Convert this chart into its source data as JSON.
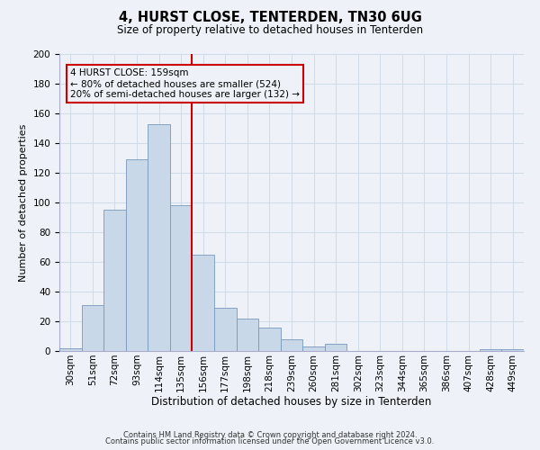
{
  "title": "4, HURST CLOSE, TENTERDEN, TN30 6UG",
  "subtitle": "Size of property relative to detached houses in Tenterden",
  "xlabel": "Distribution of detached houses by size in Tenterden",
  "ylabel": "Number of detached properties",
  "footer_line1": "Contains HM Land Registry data © Crown copyright and database right 2024.",
  "footer_line2": "Contains public sector information licensed under the Open Government Licence v3.0.",
  "bar_labels": [
    "30sqm",
    "51sqm",
    "72sqm",
    "93sqm",
    "114sqm",
    "135sqm",
    "156sqm",
    "177sqm",
    "198sqm",
    "218sqm",
    "239sqm",
    "260sqm",
    "281sqm",
    "302sqm",
    "323sqm",
    "344sqm",
    "365sqm",
    "386sqm",
    "407sqm",
    "428sqm",
    "449sqm"
  ],
  "bar_values": [
    2,
    31,
    95,
    129,
    153,
    98,
    65,
    29,
    22,
    16,
    8,
    3,
    5,
    0,
    0,
    0,
    0,
    0,
    0,
    1,
    1
  ],
  "bar_color": "#c8d8e8",
  "bar_edge_color": "#7799bb",
  "vertical_line_x": 6,
  "vertical_line_color": "#cc0000",
  "annotation_line1": "4 HURST CLOSE: 159sqm",
  "annotation_line2": "← 80% of detached houses are smaller (524)",
  "annotation_line3": "20% of semi-detached houses are larger (132) →",
  "box_edge_color": "#cc0000",
  "ylim": [
    0,
    200
  ],
  "yticks": [
    0,
    20,
    40,
    60,
    80,
    100,
    120,
    140,
    160,
    180,
    200
  ],
  "grid_color": "#d0dce8",
  "background_color": "#eef2f8",
  "title_fontsize": 10.5,
  "subtitle_fontsize": 8.5,
  "ylabel_fontsize": 8,
  "xlabel_fontsize": 8.5,
  "tick_fontsize": 7.5,
  "annotation_fontsize": 7.5,
  "footer_fontsize": 6.0
}
